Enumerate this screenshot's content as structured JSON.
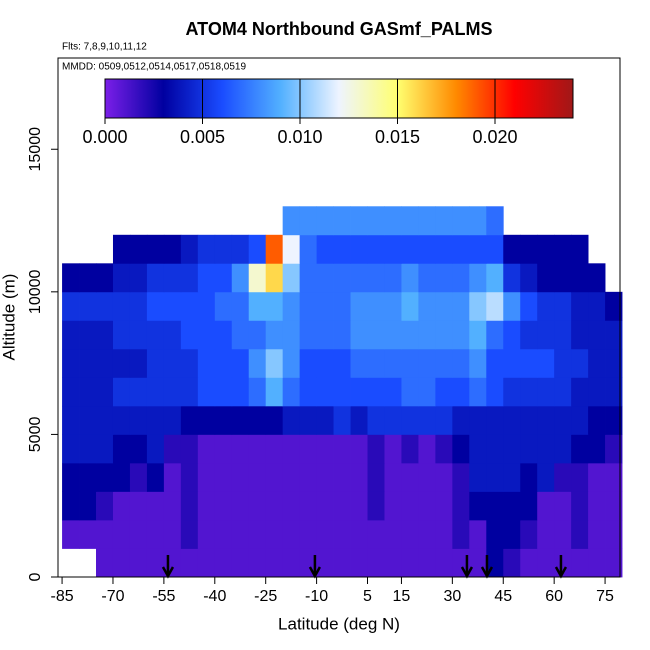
{
  "chart_data": {
    "type": "heatmap",
    "title": "ATOM4 Northbound GASmf_PALMS",
    "subtitle": "Flts: 7,8,9,10,11,12",
    "annotation": "MMDD: 0509,0512,0514,0517,0518,0519",
    "x_label": "Latitude (deg N)",
    "y_label": "Altitude (m)",
    "xlim": [
      -86.2,
      79.4
    ],
    "ylim": [
      0,
      18200
    ],
    "xticks": [
      -85,
      -70,
      -55,
      -40,
      -25,
      -10,
      5,
      15,
      30,
      45,
      60,
      75
    ],
    "yticks": [
      0,
      5000,
      10000,
      15000
    ],
    "clim": [
      0,
      0.024
    ],
    "cticks": [
      {
        "value": 0,
        "label": "0.000"
      },
      {
        "value": 0.005,
        "label": "0.005"
      },
      {
        "value": 0.01,
        "label": "0.010"
      },
      {
        "value": 0.015,
        "label": "0.015"
      },
      {
        "value": 0.02,
        "label": "0.020"
      }
    ],
    "colormap": [
      "#7b1fe8",
      "#0000a0",
      "#1a4cff",
      "#52b0ff",
      "#eef4ff",
      "#ffff70",
      "#ff8a00",
      "#ff0000",
      "#a01818"
    ],
    "x_bins": [
      -85,
      -80,
      -75,
      -70,
      -65,
      -60,
      -55,
      -50,
      -45,
      -40,
      -35,
      -30,
      -25,
      -20,
      -15,
      -10,
      -5,
      0,
      5,
      10,
      15,
      20,
      25,
      30,
      35,
      40,
      45,
      50,
      55,
      60,
      65,
      70,
      75,
      80
    ],
    "y_bins": [
      0,
      1000,
      2000,
      3000,
      4000,
      5000,
      6000,
      7000,
      8000,
      9000,
      10000,
      11000,
      12000,
      13000
    ],
    "z": [
      [
        null,
        null,
        0.001,
        0.001,
        0.001,
        0.001,
        0.001,
        0.001,
        0.001,
        0.001,
        0.001,
        0.001,
        0.001,
        0.001,
        0.001,
        0.001,
        0.001,
        0.001,
        0.001,
        0.001,
        0.001,
        0.001,
        0.001,
        0.001,
        0.001,
        0.003,
        0.002,
        0.001,
        0.001,
        0.001,
        0.001,
        0.001,
        0.001
      ],
      [
        0.001,
        0.001,
        0.001,
        0.001,
        0.001,
        0.001,
        0.001,
        0.002,
        0.001,
        0.001,
        0.001,
        0.001,
        0.001,
        0.001,
        0.001,
        0.001,
        0.001,
        0.001,
        0.001,
        0.001,
        0.001,
        0.001,
        0.001,
        0.002,
        0.001,
        0.003,
        0.003,
        0.002,
        0.001,
        0.001,
        0.002,
        0.001,
        0.001
      ],
      [
        0.003,
        0.003,
        0.002,
        0.001,
        0.001,
        0.001,
        0.001,
        0.002,
        0.001,
        0.001,
        0.001,
        0.001,
        0.001,
        0.001,
        0.001,
        0.001,
        0.001,
        0.001,
        0.002,
        0.001,
        0.001,
        0.001,
        0.001,
        0.002,
        0.003,
        0.003,
        0.003,
        0.003,
        0.001,
        0.001,
        0.002,
        0.001,
        0.001
      ],
      [
        0.003,
        0.003,
        0.003,
        0.003,
        0.002,
        0.003,
        0.001,
        0.002,
        0.001,
        0.001,
        0.001,
        0.001,
        0.001,
        0.001,
        0.001,
        0.001,
        0.001,
        0.001,
        0.002,
        0.001,
        0.001,
        0.001,
        0.001,
        0.002,
        0.004,
        0.004,
        0.004,
        0.003,
        0.004,
        0.002,
        0.002,
        0.001,
        0.001
      ],
      [
        0.004,
        0.004,
        0.004,
        0.003,
        0.003,
        0.004,
        0.002,
        0.002,
        0.001,
        0.001,
        0.001,
        0.001,
        0.001,
        0.001,
        0.001,
        0.001,
        0.001,
        0.001,
        0.002,
        0.001,
        0.002,
        0.001,
        0.002,
        0.003,
        0.004,
        0.004,
        0.004,
        0.004,
        0.004,
        0.004,
        0.003,
        0.003,
        0.002
      ],
      [
        0.004,
        0.004,
        0.004,
        0.004,
        0.004,
        0.004,
        0.004,
        0.003,
        0.003,
        0.003,
        0.003,
        0.003,
        0.003,
        0.004,
        0.004,
        0.004,
        0.005,
        0.004,
        0.005,
        0.005,
        0.005,
        0.005,
        0.005,
        0.004,
        0.004,
        0.004,
        0.004,
        0.004,
        0.004,
        0.004,
        0.004,
        0.003,
        0.003
      ],
      [
        0.004,
        0.004,
        0.004,
        0.005,
        0.005,
        0.005,
        0.005,
        0.005,
        0.006,
        0.006,
        0.006,
        0.007,
        0.009,
        0.007,
        0.006,
        0.006,
        0.006,
        0.006,
        0.006,
        0.006,
        0.007,
        0.007,
        0.006,
        0.006,
        0.007,
        0.006,
        0.005,
        0.005,
        0.005,
        0.005,
        0.004,
        0.004,
        0.004
      ],
      [
        0.004,
        0.004,
        0.004,
        0.004,
        0.004,
        0.005,
        0.005,
        0.005,
        0.006,
        0.006,
        0.006,
        0.008,
        0.01,
        0.008,
        0.006,
        0.006,
        0.006,
        0.007,
        0.007,
        0.007,
        0.007,
        0.007,
        0.007,
        0.007,
        0.008,
        0.006,
        0.006,
        0.006,
        0.006,
        0.005,
        0.005,
        0.004,
        0.004
      ],
      [
        0.004,
        0.004,
        0.004,
        0.005,
        0.005,
        0.005,
        0.005,
        0.006,
        0.006,
        0.006,
        0.007,
        0.007,
        0.008,
        0.008,
        0.007,
        0.007,
        0.007,
        0.008,
        0.008,
        0.008,
        0.008,
        0.008,
        0.008,
        0.008,
        0.009,
        0.007,
        0.006,
        0.005,
        0.005,
        0.005,
        0.004,
        0.004,
        0.004
      ],
      [
        0.005,
        0.005,
        0.005,
        0.005,
        0.005,
        0.006,
        0.006,
        0.006,
        0.006,
        0.007,
        0.007,
        0.009,
        0.009,
        0.008,
        0.007,
        0.007,
        0.007,
        0.008,
        0.008,
        0.008,
        0.009,
        0.008,
        0.008,
        0.008,
        0.01,
        0.011,
        0.008,
        0.006,
        0.005,
        0.005,
        0.004,
        0.004,
        0.003
      ],
      [
        0.003,
        0.003,
        0.003,
        0.004,
        0.004,
        0.005,
        0.005,
        0.005,
        0.006,
        0.006,
        0.008,
        0.013,
        0.016,
        0.01,
        0.007,
        0.007,
        0.007,
        0.007,
        0.007,
        0.007,
        0.008,
        0.007,
        0.007,
        0.007,
        0.008,
        0.009,
        0.005,
        0.004,
        0.003,
        0.003,
        0.003,
        0.003,
        null
      ],
      [
        null,
        null,
        null,
        0.003,
        0.003,
        0.003,
        0.003,
        0.004,
        0.005,
        0.005,
        0.005,
        0.006,
        0.019,
        0.012,
        0.007,
        0.006,
        0.006,
        0.006,
        0.006,
        0.006,
        0.006,
        0.006,
        0.006,
        0.006,
        0.006,
        0.006,
        0.003,
        0.003,
        0.003,
        0.003,
        0.003,
        null,
        null
      ],
      [
        null,
        null,
        null,
        null,
        null,
        null,
        null,
        null,
        null,
        null,
        null,
        null,
        null,
        0.008,
        0.008,
        0.008,
        0.008,
        0.008,
        0.008,
        0.008,
        0.008,
        0.008,
        0.008,
        0.008,
        0.008,
        0.007,
        null,
        null,
        null,
        null,
        null,
        null,
        null
      ]
    ],
    "arrows_x": [
      -53.8,
      -10.5,
      34.3,
      40.2,
      62.0
    ]
  }
}
